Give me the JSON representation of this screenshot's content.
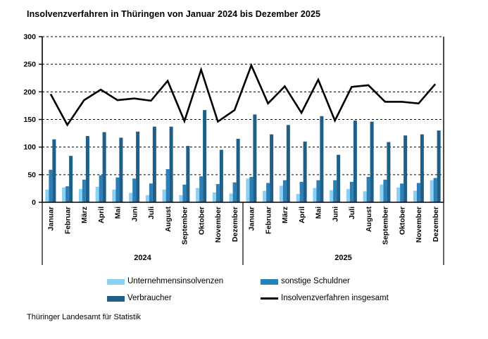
{
  "title": "Insolvenzverfahren in Thüringen von Januar 2024 bis Dezember 2025",
  "source": "Thüringer Landesamt für Statistik",
  "legend": {
    "items": [
      {
        "label": "Unternehmensinsolvenzen",
        "type": "bar",
        "color": "#8AD0F2"
      },
      {
        "label": "sonstige Schuldner",
        "type": "bar",
        "color": "#2B7FB8"
      },
      {
        "label": "Verbraucher",
        "type": "bar",
        "color": "#1F5E87"
      },
      {
        "label": "Insolvenzverfahren insgesamt",
        "type": "line",
        "color": "#000000"
      }
    ]
  },
  "chart_data": {
    "type": "bar",
    "title": "Insolvenzverfahren in Thüringen von Januar 2024 bis Dezember 2025",
    "months": [
      "Januar",
      "Februar",
      "März",
      "April",
      "Mai",
      "Juni",
      "Juli",
      "August",
      "September",
      "Oktober",
      "November",
      "Dezember"
    ],
    "years": [
      "2024",
      "2025"
    ],
    "ylabel": "",
    "xlabel": "",
    "ylim": [
      0,
      300
    ],
    "ytick_step": 50,
    "grid": "horizontal-dashed",
    "legend_position": "bottom",
    "series": [
      {
        "name": "Unternehmensinsolvenzen",
        "type": "bar",
        "color": "#8AD0F2",
        "values": [
          23,
          27,
          24,
          28,
          23,
          17,
          13,
          23,
          13,
          26,
          18,
          16,
          43,
          21,
          30,
          15,
          26,
          22,
          24,
          20,
          32,
          27,
          21,
          40
        ]
      },
      {
        "name": "sonstige Schuldner",
        "type": "bar",
        "color": "#2B7FB8",
        "values": [
          59,
          29,
          41,
          49,
          45,
          43,
          34,
          60,
          32,
          47,
          33,
          36,
          46,
          35,
          40,
          37,
          40,
          40,
          37,
          46,
          41,
          34,
          35,
          44
        ]
      },
      {
        "name": "Verbraucher",
        "type": "bar",
        "color": "#1F5E87",
        "values": [
          114,
          84,
          120,
          127,
          117,
          128,
          137,
          137,
          102,
          167,
          95,
          115,
          159,
          123,
          140,
          110,
          156,
          86,
          148,
          146,
          109,
          121,
          123,
          130
        ]
      },
      {
        "name": "Insolvenzverfahren insgesamt",
        "type": "line",
        "color": "#000000",
        "values": [
          196,
          140,
          185,
          204,
          185,
          188,
          184,
          220,
          147,
          240,
          146,
          167,
          248,
          179,
          210,
          162,
          222,
          148,
          209,
          212,
          182,
          182,
          179,
          214
        ]
      }
    ]
  }
}
